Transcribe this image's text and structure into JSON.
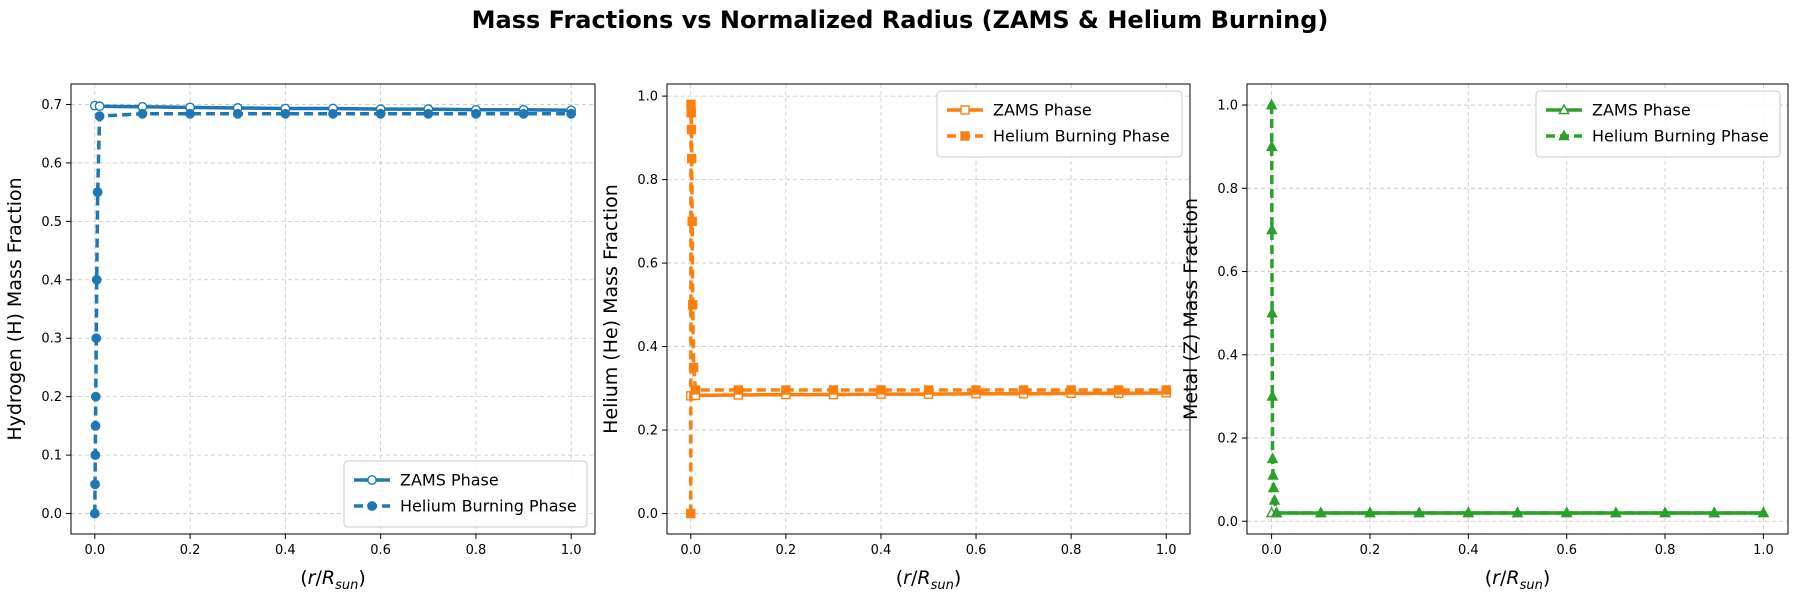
{
  "figure": {
    "title": "Mass Fractions vs Normalized Radius (ZAMS & Helium Burning)"
  },
  "chart_data": [
    {
      "type": "line",
      "ylabel": "Hydrogen (H) Mass Fraction",
      "xlabel_parts": [
        "(",
        "r",
        "/",
        "R",
        "sun",
        ")"
      ],
      "color": "#1f77b4",
      "marker": "circle",
      "xlim": [
        -0.05,
        1.05
      ],
      "ylim": [
        -0.035,
        0.735
      ],
      "xticks": [
        0.0,
        0.2,
        0.4,
        0.6,
        0.8,
        1.0
      ],
      "xtick_labels": [
        "0.0",
        "0.2",
        "0.4",
        "0.6",
        "0.8",
        "1.0"
      ],
      "yticks": [
        0.0,
        0.1,
        0.2,
        0.3,
        0.4,
        0.5,
        0.6,
        0.7
      ],
      "ytick_labels": [
        "0.0",
        "0.1",
        "0.2",
        "0.3",
        "0.4",
        "0.5",
        "0.6",
        "0.7"
      ],
      "grid": true,
      "legend_loc": "lower-right",
      "series": [
        {
          "name": "ZAMS Phase",
          "style": "solid",
          "fill": "hollow",
          "x": [
            0.0,
            0.01,
            0.1,
            0.2,
            0.3,
            0.4,
            0.5,
            0.6,
            0.7,
            0.8,
            0.9,
            1.0
          ],
          "y": [
            0.698,
            0.697,
            0.696,
            0.695,
            0.694,
            0.693,
            0.693,
            0.692,
            0.692,
            0.691,
            0.691,
            0.69
          ]
        },
        {
          "name": "Helium Burning Phase",
          "style": "dashed",
          "fill": "filled",
          "x": [
            0.0,
            0.0005,
            0.001,
            0.0015,
            0.002,
            0.003,
            0.004,
            0.006,
            0.01,
            0.1,
            0.2,
            0.3,
            0.4,
            0.5,
            0.6,
            0.7,
            0.8,
            0.9,
            1.0
          ],
          "y": [
            0.0,
            0.05,
            0.1,
            0.15,
            0.2,
            0.3,
            0.4,
            0.55,
            0.68,
            0.684,
            0.684,
            0.684,
            0.684,
            0.684,
            0.684,
            0.684,
            0.684,
            0.684,
            0.684
          ]
        }
      ]
    },
    {
      "type": "line",
      "ylabel": "Helium (He) Mass Fraction",
      "xlabel_parts": [
        "(",
        "r",
        "/",
        "R",
        "sun",
        ")"
      ],
      "color": "#ff7f0e",
      "marker": "square",
      "xlim": [
        -0.05,
        1.05
      ],
      "ylim": [
        -0.049,
        1.029
      ],
      "xticks": [
        0.0,
        0.2,
        0.4,
        0.6,
        0.8,
        1.0
      ],
      "xtick_labels": [
        "0.0",
        "0.2",
        "0.4",
        "0.6",
        "0.8",
        "1.0"
      ],
      "yticks": [
        0.0,
        0.2,
        0.4,
        0.6,
        0.8,
        1.0
      ],
      "ytick_labels": [
        "0.0",
        "0.2",
        "0.4",
        "0.6",
        "0.8",
        "1.0"
      ],
      "grid": true,
      "legend_loc": "upper-right",
      "series": [
        {
          "name": "ZAMS Phase",
          "style": "solid",
          "fill": "hollow",
          "x": [
            0.0,
            0.01,
            0.1,
            0.2,
            0.3,
            0.4,
            0.5,
            0.6,
            0.7,
            0.8,
            0.9,
            1.0
          ],
          "y": [
            0.282,
            0.283,
            0.284,
            0.285,
            0.285,
            0.286,
            0.286,
            0.287,
            0.287,
            0.288,
            0.288,
            0.289
          ]
        },
        {
          "name": "Helium Burning Phase",
          "style": "dashed",
          "fill": "filled",
          "x": [
            0.0,
            0.0005,
            0.001,
            0.0015,
            0.002,
            0.003,
            0.004,
            0.006,
            0.01,
            0.1,
            0.2,
            0.3,
            0.4,
            0.5,
            0.6,
            0.7,
            0.8,
            0.9,
            1.0
          ],
          "y": [
            0.0,
            0.98,
            0.96,
            0.92,
            0.85,
            0.7,
            0.5,
            0.35,
            0.296,
            0.296,
            0.296,
            0.296,
            0.296,
            0.296,
            0.296,
            0.296,
            0.296,
            0.296,
            0.296
          ]
        }
      ]
    },
    {
      "type": "line",
      "ylabel": "Metal (Z) Mass Fraction",
      "xlabel_parts": [
        "(",
        "r",
        "/",
        "R",
        "sun",
        ")"
      ],
      "color": "#2ca02c",
      "marker": "triangle",
      "xlim": [
        -0.05,
        1.05
      ],
      "ylim": [
        -0.0306,
        1.0506
      ],
      "xticks": [
        0.0,
        0.2,
        0.4,
        0.6,
        0.8,
        1.0
      ],
      "xtick_labels": [
        "0.0",
        "0.2",
        "0.4",
        "0.6",
        "0.8",
        "1.0"
      ],
      "yticks": [
        0.0,
        0.2,
        0.4,
        0.6,
        0.8,
        1.0
      ],
      "ytick_labels": [
        "0.0",
        "0.2",
        "0.4",
        "0.6",
        "0.8",
        "1.0"
      ],
      "grid": true,
      "legend_loc": "upper-right",
      "series": [
        {
          "name": "ZAMS Phase",
          "style": "solid",
          "fill": "hollow",
          "x": [
            0.0,
            0.01,
            0.1,
            0.2,
            0.3,
            0.4,
            0.5,
            0.6,
            0.7,
            0.8,
            0.9,
            1.0
          ],
          "y": [
            0.02,
            0.02,
            0.02,
            0.02,
            0.02,
            0.02,
            0.02,
            0.02,
            0.02,
            0.02,
            0.02,
            0.02
          ]
        },
        {
          "name": "Helium Burning Phase",
          "style": "dashed",
          "fill": "filled",
          "x": [
            0.0,
            0.0003,
            0.0006,
            0.001,
            0.0015,
            0.002,
            0.003,
            0.004,
            0.006,
            0.01,
            0.1,
            0.2,
            0.3,
            0.4,
            0.5,
            0.6,
            0.7,
            0.8,
            0.9,
            1.0
          ],
          "y": [
            1.0,
            0.9,
            0.7,
            0.5,
            0.3,
            0.15,
            0.11,
            0.08,
            0.05,
            0.02,
            0.02,
            0.02,
            0.02,
            0.02,
            0.02,
            0.02,
            0.02,
            0.02,
            0.02,
            0.02
          ]
        }
      ]
    }
  ]
}
